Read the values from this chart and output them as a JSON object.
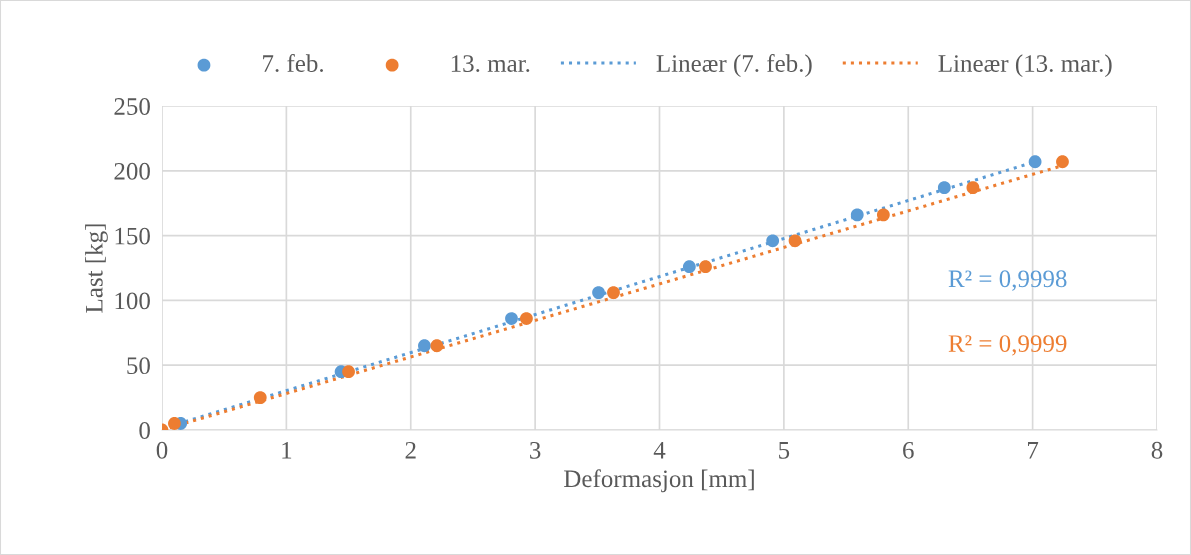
{
  "chart_data": {
    "type": "scatter",
    "xlabel": "Deformasjon [mm]",
    "ylabel": "Last [kg]",
    "xlim": [
      0,
      8
    ],
    "xticks": [
      0,
      1,
      2,
      3,
      4,
      5,
      6,
      7,
      8
    ],
    "ylim": [
      0,
      250
    ],
    "yticks": [
      0,
      50,
      100,
      150,
      200,
      250
    ],
    "grid": true,
    "legend": "top",
    "series": [
      {
        "name": "7. feb.",
        "marker": "circle",
        "color": "#5b9bd5",
        "x": [
          0.15,
          0.78,
          1.44,
          2.11,
          2.81,
          3.51,
          4.24,
          4.91,
          5.59,
          6.29,
          7.02
        ],
        "values": [
          5,
          null,
          45,
          65,
          86,
          106,
          126,
          146,
          166,
          187,
          207
        ]
      },
      {
        "name": "13. mar.",
        "marker": "circle",
        "color": "#ed7d31",
        "x": [
          0,
          0.1,
          0.79,
          1.5,
          2.21,
          2.93,
          3.63,
          4.37,
          5.09,
          5.8,
          6.52,
          7.24
        ],
        "values": [
          0,
          5,
          25,
          45,
          65,
          86,
          106,
          126,
          146,
          166,
          187,
          207
        ]
      },
      {
        "name": "Lineær (7. feb.)",
        "type": "line",
        "marker": "none",
        "line_style": "dotted",
        "color": "#5b9bd5",
        "x": [
          0,
          7.02
        ],
        "values": [
          1,
          207
        ]
      },
      {
        "name": "Lineær (13. mar.)",
        "type": "line",
        "marker": "none",
        "line_style": "dotted",
        "color": "#ed7d31",
        "x": [
          0,
          7.24
        ],
        "values": [
          0,
          204
        ]
      }
    ],
    "annotations": [
      "R² = 0,9998",
      "R² = 0,9999"
    ]
  }
}
